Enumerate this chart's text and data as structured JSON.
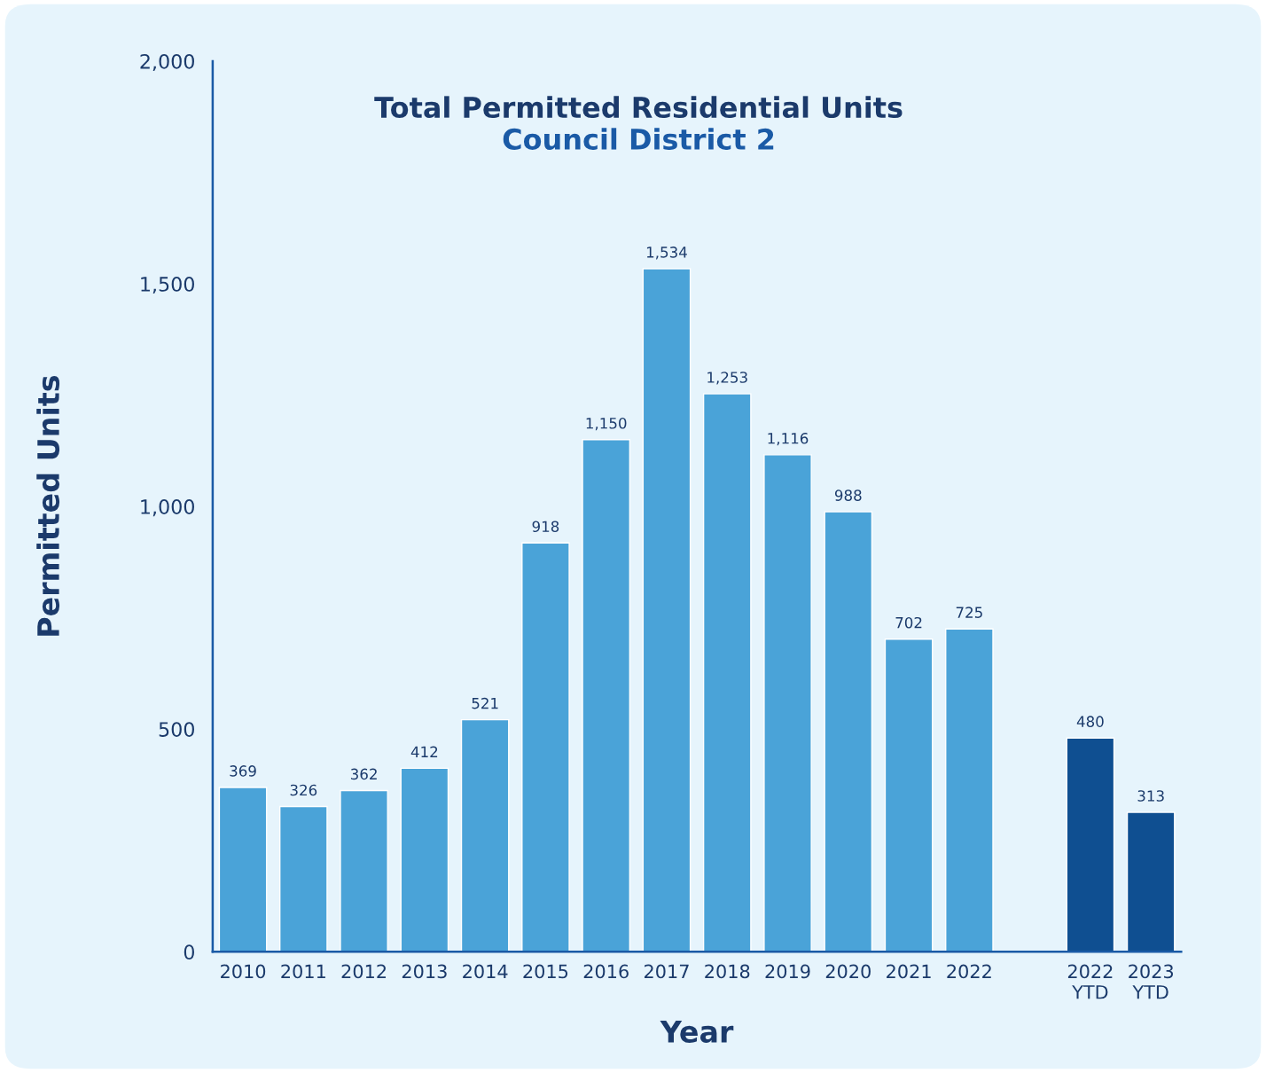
{
  "chart_data": {
    "type": "bar",
    "title": "Total Permitted Residential Units",
    "subtitle": "Council District 2",
    "xlabel": "Year",
    "ylabel": "Permitted Units",
    "categories": [
      "2010",
      "2011",
      "2012",
      "2013",
      "2014",
      "2015",
      "2016",
      "2017",
      "2018",
      "2019",
      "2020",
      "2021",
      "2022",
      null,
      "2022\nYTD",
      "2023\nYTD"
    ],
    "values": [
      369,
      326,
      362,
      412,
      521,
      918,
      1150,
      1534,
      1253,
      1116,
      988,
      702,
      725,
      null,
      480,
      313
    ],
    "colors": [
      "#4aa3d8",
      "#4aa3d8",
      "#4aa3d8",
      "#4aa3d8",
      "#4aa3d8",
      "#4aa3d8",
      "#4aa3d8",
      "#4aa3d8",
      "#4aa3d8",
      "#4aa3d8",
      "#4aa3d8",
      "#4aa3d8",
      "#4aa3d8",
      null,
      "#0f4f91",
      "#0f4f91"
    ],
    "value_labels": [
      "369",
      "326",
      "362",
      "412",
      "521",
      "918",
      "1,150",
      "1,534",
      "1,253",
      "1,116",
      "988",
      "702",
      "725",
      null,
      "480",
      "313"
    ],
    "ylim": [
      0,
      2000
    ],
    "yticks": [
      0,
      {
        "value": 500,
        "label": "500"
      },
      {
        "value": 1000,
        "label": "1,000"
      },
      {
        "value": 1500,
        "label": "1,500"
      },
      {
        "value": 2000,
        "label": "2,000"
      }
    ],
    "grid": false,
    "legend": false
  }
}
